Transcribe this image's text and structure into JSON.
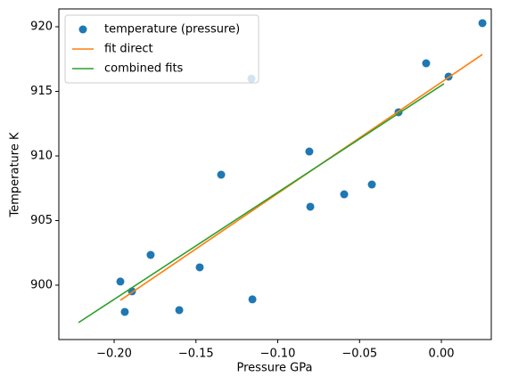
{
  "chart_data": {
    "type": "scatter",
    "xlabel": "Pressure GPa",
    "ylabel": "Temperature K",
    "xlim": [
      -0.2338,
      0.0305
    ],
    "ylim": [
      895.79,
      921.38
    ],
    "xticks": [
      {
        "value": -0.2,
        "label": "−0.20"
      },
      {
        "value": -0.15,
        "label": "−0.15"
      },
      {
        "value": -0.1,
        "label": "−0.10"
      },
      {
        "value": -0.05,
        "label": "−0.05"
      },
      {
        "value": 0,
        "label": "0.00"
      }
    ],
    "yticks": [
      900,
      905,
      910,
      915,
      920
    ],
    "legend": "upper left",
    "series": [
      {
        "name": "temperature (pressure)",
        "color": "#1f77b4",
        "style": "markers",
        "x": [
          0.0251,
          -0.0093,
          0.0044,
          -0.0262,
          -0.1161,
          -0.0807,
          -0.1346,
          -0.0425,
          -0.0594,
          -0.0801,
          -0.1777,
          -0.1477,
          -0.1962,
          -0.1891,
          -0.1935,
          -0.1602,
          -0.1155
        ],
        "values": [
          920.28,
          917.17,
          916.14,
          913.38,
          915.98,
          910.34,
          908.55,
          907.79,
          907.03,
          906.07,
          902.34,
          901.38,
          900.28,
          899.52,
          897.93,
          898.07,
          898.9
        ]
      },
      {
        "name": "fit direct",
        "color": "#ff7f0e",
        "style": "line",
        "x": [
          -0.1962,
          0.0251
        ],
        "values": [
          898.83,
          917.86
        ]
      },
      {
        "name": "combined fits",
        "color": "#2ca02c",
        "style": "line",
        "x": [
          -0.2218,
          0.0016
        ],
        "values": [
          897.1,
          915.59
        ]
      }
    ]
  }
}
